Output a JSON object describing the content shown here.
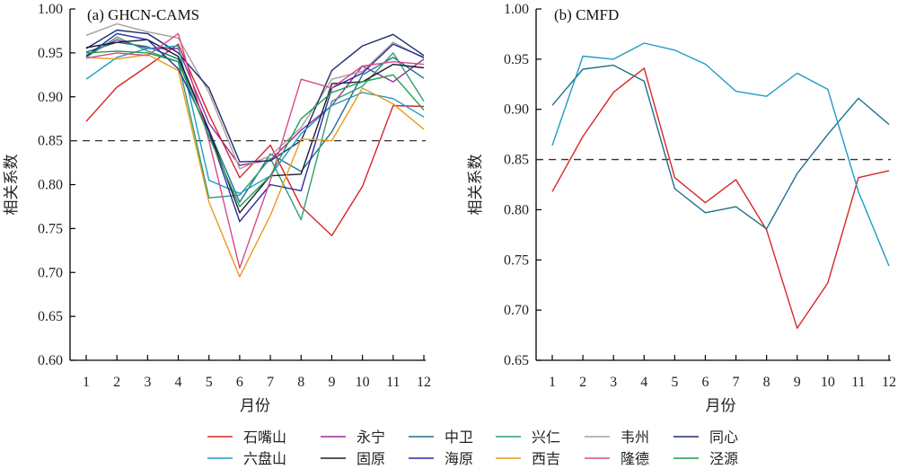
{
  "chart_data": [
    {
      "type": "line",
      "title": "(a) GHCN-CAMS",
      "xlabel": "月份",
      "ylabel": "相关系数",
      "xlim": [
        1,
        12
      ],
      "ylim": [
        0.6,
        1.0
      ],
      "x": [
        1,
        2,
        3,
        4,
        5,
        6,
        7,
        8,
        9,
        10,
        11,
        12
      ],
      "xticks": [
        "1",
        "2",
        "3",
        "4",
        "5",
        "6",
        "7",
        "8",
        "9",
        "10",
        "11",
        "12"
      ],
      "yticks": [
        "0.60",
        "0.65",
        "0.70",
        "0.75",
        "0.80",
        "0.85",
        "0.90",
        "0.95",
        "1.00"
      ],
      "reference_line": 0.85,
      "series": [
        {
          "name": "石嘴山",
          "color": "#d62728",
          "values": [
            0.872,
            0.911,
            0.935,
            0.96,
            0.88,
            0.808,
            0.845,
            0.775,
            0.742,
            0.798,
            0.89,
            0.889
          ]
        },
        {
          "name": "永宁",
          "color": "#9b2a9b",
          "values": [
            0.947,
            0.965,
            0.955,
            0.955,
            0.87,
            0.822,
            0.828,
            0.862,
            0.89,
            0.935,
            0.917,
            0.943
          ]
        },
        {
          "name": "中卫",
          "color": "#1f6f8b",
          "values": [
            0.951,
            0.962,
            0.957,
            0.943,
            0.862,
            0.78,
            0.835,
            0.815,
            0.86,
            0.925,
            0.945,
            0.921
          ]
        },
        {
          "name": "兴仁",
          "color": "#2e9e74",
          "values": [
            0.945,
            0.968,
            0.952,
            0.94,
            0.785,
            0.788,
            0.83,
            0.76,
            0.895,
            0.912,
            0.95,
            0.895
          ]
        },
        {
          "name": "韦州",
          "color": "#a89f9a",
          "values": [
            0.97,
            0.983,
            0.974,
            0.967,
            0.905,
            0.818,
            0.833,
            0.865,
            0.92,
            0.929,
            0.962,
            0.944
          ]
        },
        {
          "name": "同心",
          "color": "#1c2d6b",
          "values": [
            0.955,
            0.976,
            0.972,
            0.95,
            0.91,
            0.826,
            0.827,
            0.85,
            0.93,
            0.958,
            0.971,
            0.947
          ]
        },
        {
          "name": "六盘山",
          "color": "#1f9bc4",
          "values": [
            0.92,
            0.945,
            0.955,
            0.958,
            0.805,
            0.79,
            0.81,
            0.858,
            0.89,
            0.905,
            0.898,
            0.877
          ]
        },
        {
          "name": "固原",
          "color": "#1b1b2e",
          "values": [
            0.956,
            0.962,
            0.965,
            0.946,
            0.862,
            0.768,
            0.81,
            0.812,
            0.915,
            0.917,
            0.937,
            0.933
          ]
        },
        {
          "name": "海原",
          "color": "#2a2aa6",
          "values": [
            0.946,
            0.972,
            0.965,
            0.932,
            0.86,
            0.758,
            0.8,
            0.793,
            0.91,
            0.927,
            0.96,
            0.945
          ]
        },
        {
          "name": "西吉",
          "color": "#e89b1c",
          "values": [
            0.945,
            0.943,
            0.948,
            0.93,
            0.78,
            0.695,
            0.765,
            0.852,
            0.85,
            0.91,
            0.892,
            0.863
          ]
        },
        {
          "name": "隆德",
          "color": "#d9488b",
          "values": [
            0.944,
            0.95,
            0.947,
            0.972,
            0.85,
            0.705,
            0.805,
            0.92,
            0.91,
            0.935,
            0.94,
            0.937
          ]
        },
        {
          "name": "泾源",
          "color": "#1e9e4a",
          "values": [
            0.95,
            0.952,
            0.95,
            0.94,
            0.855,
            0.775,
            0.81,
            0.875,
            0.905,
            0.917,
            0.925,
            0.885
          ]
        }
      ]
    },
    {
      "type": "line",
      "title": "(b) CMFD",
      "xlabel": "月份",
      "ylabel": "相关系数",
      "xlim": [
        1,
        12
      ],
      "ylim": [
        0.65,
        1.0
      ],
      "x": [
        1,
        2,
        3,
        4,
        5,
        6,
        7,
        8,
        9,
        10,
        11,
        12
      ],
      "xticks": [
        "1",
        "2",
        "3",
        "4",
        "5",
        "6",
        "7",
        "8",
        "9",
        "10",
        "11",
        "12"
      ],
      "yticks": [
        "0.65",
        "0.70",
        "0.75",
        "0.80",
        "0.85",
        "0.90",
        "0.95",
        "1.00"
      ],
      "reference_line": 0.85,
      "series": [
        {
          "name": "石嘴山",
          "color": "#d62728",
          "values": [
            0.818,
            0.873,
            0.917,
            0.941,
            0.832,
            0.807,
            0.83,
            0.78,
            0.682,
            0.727,
            0.832,
            0.839
          ]
        },
        {
          "name": "中卫",
          "color": "#1f6f8b",
          "values": [
            0.904,
            0.94,
            0.944,
            0.928,
            0.821,
            0.797,
            0.803,
            0.781,
            0.836,
            0.875,
            0.911,
            0.885
          ]
        },
        {
          "name": "六盘山",
          "color": "#1f9bc4",
          "values": [
            0.864,
            0.953,
            0.95,
            0.966,
            0.959,
            0.945,
            0.918,
            0.913,
            0.936,
            0.92,
            0.818,
            0.744
          ]
        }
      ]
    }
  ],
  "legend": {
    "rows": [
      [
        "石嘴山",
        "永宁",
        "中卫",
        "兴仁",
        "韦州",
        "同心"
      ],
      [
        "六盘山",
        "固原",
        "海原",
        "西吉",
        "隆德",
        "泾源"
      ]
    ],
    "colors": {
      "石嘴山": "#d62728",
      "永宁": "#9b2a9b",
      "中卫": "#1f6f8b",
      "兴仁": "#2e9e74",
      "韦州": "#a89f9a",
      "同心": "#1c2d6b",
      "六盘山": "#1f9bc4",
      "固原": "#1b1b2e",
      "海原": "#2a2aa6",
      "西吉": "#e89b1c",
      "隆德": "#d9488b",
      "泾源": "#1e9e4a"
    }
  }
}
